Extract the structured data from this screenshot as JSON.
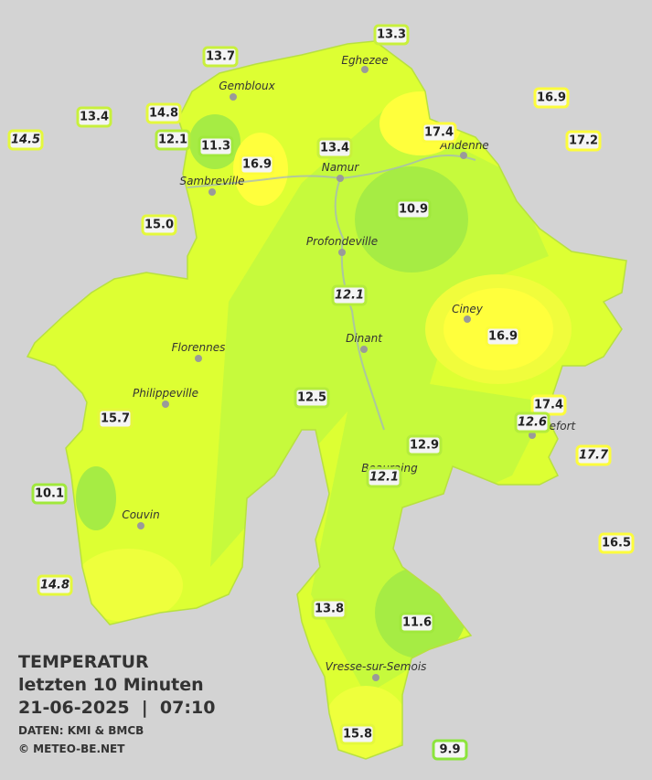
{
  "title": "TEMPERATUR",
  "subtitle": "letzten 10 Minuten",
  "datetime": "21-06-2025  |  07:10",
  "source": "DATEN: KMI & BMCB",
  "copyright": "© METEO-BE.NET",
  "cities": [
    {
      "name": "Eghezee"
    },
    {
      "name": "Gembloux"
    },
    {
      "name": "Andenne"
    },
    {
      "name": "Namur"
    },
    {
      "name": "Sambreville"
    },
    {
      "name": "Profondeville"
    },
    {
      "name": "Ciney"
    },
    {
      "name": "Dinant"
    },
    {
      "name": "Florennes"
    },
    {
      "name": "Philippeville"
    },
    {
      "name": "Rochefort"
    },
    {
      "name": "Beauraing"
    },
    {
      "name": "Couvin"
    },
    {
      "name": "Vresse-sur-Semois"
    }
  ],
  "stations": [
    {
      "label": "13.3",
      "italic": false,
      "color": "#c8f03c"
    },
    {
      "label": "13.7",
      "italic": false,
      "color": "#c8f03c"
    },
    {
      "label": "13.4",
      "italic": false,
      "color": "#c8f03c"
    },
    {
      "label": "14.8",
      "italic": false,
      "color": "#e4f83c"
    },
    {
      "label": "14.5",
      "italic": true,
      "color": "#e4f83c"
    },
    {
      "label": "12.1",
      "italic": false,
      "color": "#b4ec3c"
    },
    {
      "label": "11.3",
      "italic": false,
      "color": "#a0e83c"
    },
    {
      "label": "16.9",
      "italic": false,
      "color": "#fcfc3c"
    },
    {
      "label": "13.4",
      "italic": false,
      "color": "#c8f03c"
    },
    {
      "label": "17.4",
      "italic": false,
      "color": "#fcfc3c"
    },
    {
      "label": "16.9",
      "italic": false,
      "color": "#fcfc3c"
    },
    {
      "label": "17.2",
      "italic": false,
      "color": "#fcfc3c"
    },
    {
      "label": "15.0",
      "italic": false,
      "color": "#e4f83c"
    },
    {
      "label": "10.9",
      "italic": false,
      "color": "#a0e83c"
    },
    {
      "label": "12.1",
      "italic": true,
      "color": "#b4ec3c"
    },
    {
      "label": "16.9",
      "italic": false,
      "color": "#fcfc3c"
    },
    {
      "label": "12.5",
      "italic": false,
      "color": "#b4ec3c"
    },
    {
      "label": "17.4",
      "italic": false,
      "color": "#fcfc3c"
    },
    {
      "label": "12.6",
      "italic": true,
      "color": "#b4ec3c"
    },
    {
      "label": "15.7",
      "italic": false,
      "color": "#e4f83c"
    },
    {
      "label": "12.9",
      "italic": false,
      "color": "#b4ec3c"
    },
    {
      "label": "17.7",
      "italic": true,
      "color": "#fcfc3c"
    },
    {
      "label": "12.1",
      "italic": true,
      "color": "#b4ec3c"
    },
    {
      "label": "10.1",
      "italic": false,
      "color": "#a0e83c"
    },
    {
      "label": "16.5",
      "italic": false,
      "color": "#fcfc3c"
    },
    {
      "label": "14.8",
      "italic": true,
      "color": "#e4f83c"
    },
    {
      "label": "13.8",
      "italic": false,
      "color": "#c8f03c"
    },
    {
      "label": "11.6",
      "italic": false,
      "color": "#a0e83c"
    },
    {
      "label": "15.8",
      "italic": false,
      "color": "#e4f83c"
    },
    {
      "label": "9.9",
      "italic": false,
      "color": "#8ce43c"
    }
  ]
}
